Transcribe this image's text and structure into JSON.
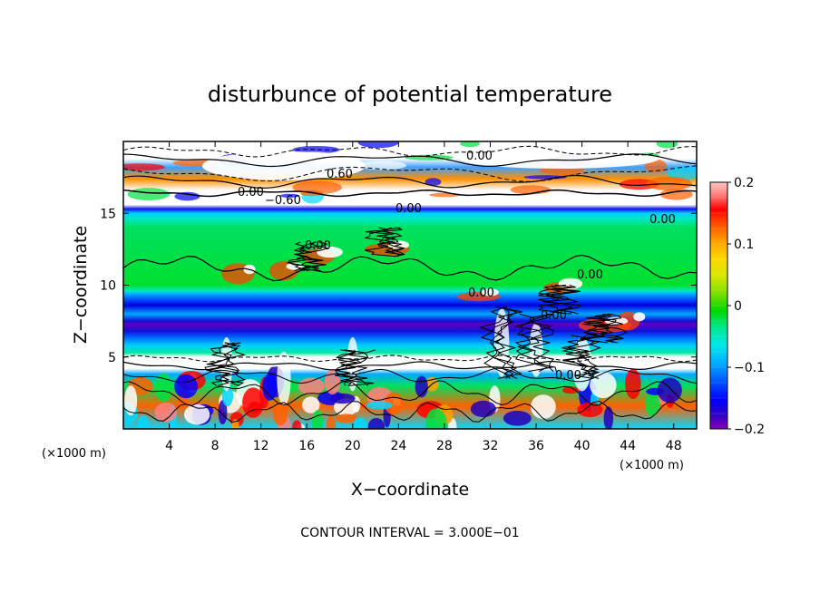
{
  "chart_data": {
    "type": "heatmap",
    "title": "disturbunce of potential temperature",
    "xlabel": "X−coordinate",
    "ylabel": "Z−coordinate",
    "x_unit": "(×1000 m)",
    "y_unit": "(×1000 m)",
    "xlim": [
      0,
      50
    ],
    "ylim": [
      0,
      20
    ],
    "x_ticks": [
      4,
      8,
      12,
      16,
      20,
      24,
      28,
      32,
      36,
      40,
      44,
      48
    ],
    "y_ticks": [
      5,
      10,
      15
    ],
    "colorbar": {
      "range": [
        -0.2,
        0.2
      ],
      "tick_values": [
        0.2,
        0.1,
        0,
        -0.1,
        -0.2
      ],
      "tick_labels": [
        "0.2",
        "0.1",
        "0",
        "−0.1",
        "−0.2"
      ],
      "colors": [
        "#8b00b8",
        "#2a00c8",
        "#0000ff",
        "#0060ff",
        "#00b0ff",
        "#00e8e8",
        "#00e890",
        "#00d800",
        "#7fe000",
        "#d8e800",
        "#ffd800",
        "#ffa000",
        "#ff5000",
        "#ff0000",
        "#ff8080",
        "#ffc8c8",
        "#ffffff"
      ]
    },
    "contour_interval": "CONTOUR INTERVAL =  3.000E−01",
    "contour_labels": [
      "0.00",
      "0.60",
      "0.00",
      "−0.60",
      "0.00",
      "0.00",
      "0.00",
      "0.00",
      "0.00",
      "0.00",
      "0.00"
    ],
    "bands": [
      {
        "z": [
          0,
          3
        ],
        "value": "mixed"
      },
      {
        "z": [
          3,
          4.5
        ],
        "value": -0.12
      },
      {
        "z": [
          4.5,
          6
        ],
        "value": -0.08
      },
      {
        "z": [
          6,
          8.5
        ],
        "value": -0.17
      },
      {
        "z": [
          8.5,
          10
        ],
        "value": -0.13
      },
      {
        "z": [
          10,
          15.5
        ],
        "value": 0.0
      },
      {
        "z": [
          15.5,
          16
        ],
        "value": -0.15
      },
      {
        "z": [
          16,
          20
        ],
        "value": "mixed"
      }
    ]
  }
}
